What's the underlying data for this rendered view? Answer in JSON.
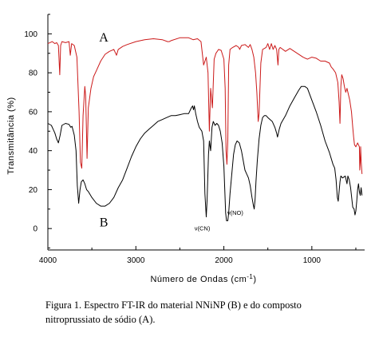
{
  "chart_data": {
    "type": "line",
    "xlabel": "Número de Ondas (cm",
    "xlabel_sup": "-1",
    "xlabel_end": ")",
    "ylabel": "Transmitância (%)",
    "xlim": [
      4000,
      400
    ],
    "ylim": [
      -11,
      110
    ],
    "x_ticks": [
      "4000",
      "3000",
      "2000",
      "1000"
    ],
    "y_ticks": [
      "0",
      "20",
      "40",
      "60",
      "80",
      "100"
    ],
    "grid": false,
    "series": [
      {
        "name": "A",
        "color": "#cc1a1a",
        "points": [
          [
            4000,
            95
          ],
          [
            3950,
            96
          ],
          [
            3920,
            95
          ],
          [
            3900,
            95.5
          ],
          [
            3880,
            94
          ],
          [
            3865,
            79
          ],
          [
            3855,
            94
          ],
          [
            3840,
            96
          ],
          [
            3800,
            95.5
          ],
          [
            3760,
            96
          ],
          [
            3745,
            89
          ],
          [
            3730,
            95
          ],
          [
            3700,
            94
          ],
          [
            3670,
            88
          ],
          [
            3645,
            60
          ],
          [
            3630,
            34
          ],
          [
            3615,
            31
          ],
          [
            3600,
            58
          ],
          [
            3580,
            73
          ],
          [
            3570,
            68
          ],
          [
            3555,
            36
          ],
          [
            3540,
            62
          ],
          [
            3510,
            72
          ],
          [
            3480,
            78
          ],
          [
            3450,
            81
          ],
          [
            3400,
            86
          ],
          [
            3350,
            89.5
          ],
          [
            3300,
            91
          ],
          [
            3250,
            92
          ],
          [
            3220,
            89
          ],
          [
            3200,
            92
          ],
          [
            3150,
            93.5
          ],
          [
            3100,
            94.5
          ],
          [
            3000,
            96
          ],
          [
            2900,
            97
          ],
          [
            2800,
            97.5
          ],
          [
            2700,
            97
          ],
          [
            2640,
            96
          ],
          [
            2620,
            96
          ],
          [
            2600,
            96.5
          ],
          [
            2500,
            98
          ],
          [
            2400,
            98
          ],
          [
            2350,
            97
          ],
          [
            2300,
            97.5
          ],
          [
            2260,
            96
          ],
          [
            2230,
            84
          ],
          [
            2200,
            88
          ],
          [
            2180,
            80
          ],
          [
            2165,
            50
          ],
          [
            2150,
            72
          ],
          [
            2130,
            62
          ],
          [
            2110,
            87
          ],
          [
            2090,
            90
          ],
          [
            2060,
            92
          ],
          [
            2030,
            91.5
          ],
          [
            2000,
            87
          ],
          [
            1985,
            72
          ],
          [
            1975,
            40
          ],
          [
            1965,
            33
          ],
          [
            1955,
            45
          ],
          [
            1945,
            84
          ],
          [
            1930,
            92
          ],
          [
            1900,
            93
          ],
          [
            1860,
            94
          ],
          [
            1830,
            93
          ],
          [
            1820,
            92
          ],
          [
            1800,
            94
          ],
          [
            1760,
            94.5
          ],
          [
            1720,
            93
          ],
          [
            1700,
            94.5
          ],
          [
            1680,
            92
          ],
          [
            1660,
            88
          ],
          [
            1640,
            80
          ],
          [
            1625,
            70
          ],
          [
            1610,
            55
          ],
          [
            1600,
            59
          ],
          [
            1590,
            72
          ],
          [
            1580,
            85
          ],
          [
            1560,
            92
          ],
          [
            1520,
            93
          ],
          [
            1500,
            95
          ],
          [
            1480,
            92
          ],
          [
            1460,
            95
          ],
          [
            1440,
            92
          ],
          [
            1420,
            94
          ],
          [
            1400,
            92
          ],
          [
            1385,
            84
          ],
          [
            1375,
            92
          ],
          [
            1360,
            93
          ],
          [
            1300,
            91
          ],
          [
            1250,
            92.5
          ],
          [
            1200,
            91
          ],
          [
            1100,
            88
          ],
          [
            1050,
            87
          ],
          [
            1000,
            88
          ],
          [
            950,
            87.5
          ],
          [
            900,
            86
          ],
          [
            850,
            86
          ],
          [
            800,
            85
          ],
          [
            780,
            83
          ],
          [
            760,
            82
          ],
          [
            730,
            80
          ],
          [
            705,
            75
          ],
          [
            690,
            65
          ],
          [
            680,
            54
          ],
          [
            670,
            73
          ],
          [
            660,
            79
          ],
          [
            645,
            77
          ],
          [
            630,
            73
          ],
          [
            615,
            70
          ],
          [
            600,
            72
          ],
          [
            590,
            70
          ],
          [
            570,
            66
          ],
          [
            550,
            60
          ],
          [
            535,
            52
          ],
          [
            525,
            47
          ],
          [
            515,
            43
          ],
          [
            500,
            42
          ],
          [
            480,
            44
          ],
          [
            460,
            42
          ],
          [
            455,
            30
          ],
          [
            450,
            34
          ],
          [
            445,
            42
          ],
          [
            440,
            35
          ],
          [
            430,
            28
          ]
        ]
      },
      {
        "name": "B",
        "color": "#000000",
        "points": [
          [
            4000,
            54
          ],
          [
            3960,
            53
          ],
          [
            3940,
            51
          ],
          [
            3920,
            49
          ],
          [
            3900,
            46
          ],
          [
            3880,
            44
          ],
          [
            3860,
            48
          ],
          [
            3840,
            53
          ],
          [
            3800,
            54
          ],
          [
            3760,
            53.5
          ],
          [
            3740,
            52
          ],
          [
            3725,
            52.5
          ],
          [
            3700,
            48
          ],
          [
            3680,
            40
          ],
          [
            3665,
            22
          ],
          [
            3650,
            13
          ],
          [
            3635,
            20
          ],
          [
            3620,
            24
          ],
          [
            3600,
            25
          ],
          [
            3580,
            23
          ],
          [
            3560,
            20
          ],
          [
            3540,
            19
          ],
          [
            3500,
            16
          ],
          [
            3450,
            13
          ],
          [
            3400,
            11.5
          ],
          [
            3350,
            11.5
          ],
          [
            3300,
            13
          ],
          [
            3250,
            16
          ],
          [
            3200,
            21
          ],
          [
            3150,
            25
          ],
          [
            3100,
            31
          ],
          [
            3050,
            37
          ],
          [
            3000,
            42
          ],
          [
            2950,
            46
          ],
          [
            2900,
            49
          ],
          [
            2850,
            51
          ],
          [
            2800,
            53
          ],
          [
            2750,
            55
          ],
          [
            2700,
            56
          ],
          [
            2650,
            57
          ],
          [
            2600,
            58
          ],
          [
            2550,
            58
          ],
          [
            2500,
            58.5
          ],
          [
            2450,
            59
          ],
          [
            2400,
            59
          ],
          [
            2370,
            62
          ],
          [
            2355,
            63
          ],
          [
            2345,
            61
          ],
          [
            2335,
            63
          ],
          [
            2320,
            59
          ],
          [
            2300,
            55
          ],
          [
            2280,
            52
          ],
          [
            2250,
            50
          ],
          [
            2230,
            45
          ],
          [
            2215,
            18
          ],
          [
            2200,
            6
          ],
          [
            2190,
            15
          ],
          [
            2175,
            38
          ],
          [
            2165,
            45
          ],
          [
            2150,
            40
          ],
          [
            2135,
            52
          ],
          [
            2120,
            55
          ],
          [
            2100,
            53
          ],
          [
            2080,
            54
          ],
          [
            2060,
            53
          ],
          [
            2040,
            50
          ],
          [
            2020,
            44
          ],
          [
            2000,
            32
          ],
          [
            1990,
            20
          ],
          [
            1980,
            8
          ],
          [
            1970,
            4
          ],
          [
            1955,
            4
          ],
          [
            1945,
            8
          ],
          [
            1930,
            18
          ],
          [
            1910,
            28
          ],
          [
            1890,
            38
          ],
          [
            1870,
            43
          ],
          [
            1850,
            45
          ],
          [
            1825,
            44
          ],
          [
            1800,
            40
          ],
          [
            1780,
            35
          ],
          [
            1760,
            30
          ],
          [
            1740,
            28
          ],
          [
            1720,
            26
          ],
          [
            1700,
            22
          ],
          [
            1680,
            16
          ],
          [
            1665,
            12
          ],
          [
            1655,
            10
          ],
          [
            1645,
            15
          ],
          [
            1635,
            24
          ],
          [
            1620,
            35
          ],
          [
            1600,
            46
          ],
          [
            1580,
            53
          ],
          [
            1560,
            57
          ],
          [
            1540,
            58
          ],
          [
            1520,
            58
          ],
          [
            1500,
            57
          ],
          [
            1450,
            55
          ],
          [
            1420,
            52
          ],
          [
            1400,
            49
          ],
          [
            1390,
            47
          ],
          [
            1380,
            49
          ],
          [
            1370,
            51
          ],
          [
            1350,
            54
          ],
          [
            1300,
            58
          ],
          [
            1250,
            63
          ],
          [
            1200,
            67
          ],
          [
            1150,
            71
          ],
          [
            1120,
            73
          ],
          [
            1080,
            73
          ],
          [
            1050,
            72
          ],
          [
            1000,
            66
          ],
          [
            950,
            60
          ],
          [
            900,
            53
          ],
          [
            850,
            45
          ],
          [
            800,
            39
          ],
          [
            760,
            33
          ],
          [
            740,
            31
          ],
          [
            725,
            25
          ],
          [
            710,
            16
          ],
          [
            700,
            14
          ],
          [
            690,
            19
          ],
          [
            680,
            24
          ],
          [
            670,
            27
          ],
          [
            650,
            26
          ],
          [
            620,
            27
          ],
          [
            600,
            23
          ],
          [
            590,
            27
          ],
          [
            575,
            25
          ],
          [
            560,
            21
          ],
          [
            545,
            15
          ],
          [
            535,
            11
          ],
          [
            520,
            10
          ],
          [
            510,
            7
          ],
          [
            500,
            9
          ],
          [
            490,
            14
          ],
          [
            480,
            20
          ],
          [
            470,
            23
          ],
          [
            460,
            19
          ],
          [
            450,
            17
          ],
          [
            440,
            21
          ],
          [
            430,
            17
          ]
        ]
      }
    ],
    "series_labels": [
      {
        "text": "A",
        "x": 3365,
        "y": 96
      },
      {
        "text": "B",
        "x": 3365,
        "y": 1
      }
    ],
    "annotations": [
      {
        "text": "ν(CN)",
        "x": 2245,
        "y": -1
      },
      {
        "text": "ν(NO)",
        "x": 1870,
        "y": 7
      }
    ]
  },
  "caption": {
    "line1": "Figura 1. Espectro FT-IR do material NNiNP (B) e do composto",
    "line2": "nitroprussiato de sódio (A)."
  }
}
